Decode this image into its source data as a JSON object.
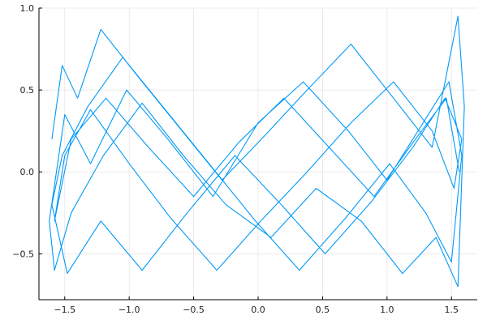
{
  "chart_data": {
    "type": "line",
    "title": "",
    "xlabel": "",
    "ylabel": "",
    "xlim": [
      -1.7,
      1.7
    ],
    "ylim": [
      -0.78,
      1.0
    ],
    "xticks": [
      -1.5,
      -1.0,
      -0.5,
      0.0,
      0.5,
      1.0,
      1.5
    ],
    "xtick_labels": [
      "−1.5",
      "−1.0",
      "−0.5",
      "0.0",
      "0.5",
      "1.0",
      "1.5"
    ],
    "yticks": [
      -0.5,
      0.0,
      0.5,
      1.0
    ],
    "ytick_labels": [
      "−0.5",
      "0.0",
      "0.5",
      "1.0"
    ],
    "grid": true,
    "legend": "none",
    "series": [
      {
        "color": "#009af9",
        "x": [
          -1.6,
          -1.52,
          -1.4,
          -1.22,
          -0.95,
          -0.62,
          -0.28,
          0.05,
          0.38,
          0.72,
          1.05,
          1.35,
          1.55,
          1.6,
          1.55,
          1.38,
          1.12,
          0.8,
          0.45,
          0.1,
          -0.25,
          -0.58,
          -0.9,
          -1.2,
          -1.45,
          -1.58,
          -1.62,
          -1.5,
          -1.3,
          -1.02,
          -0.7,
          -0.35,
          0.0,
          0.35,
          0.7,
          1.0,
          1.28,
          1.48,
          1.58,
          1.5,
          1.3,
          1.02,
          0.68,
          0.32,
          -0.02,
          -0.38,
          -0.72,
          -1.05,
          -1.32,
          -1.52,
          -1.6,
          -1.48,
          -1.22,
          -0.9,
          -0.55,
          -0.18,
          0.18,
          0.52,
          0.88,
          1.2,
          1.45,
          1.58,
          1.52,
          1.35,
          1.05,
          0.72,
          0.38,
          0.02,
          -0.32,
          -0.68,
          -1.0,
          -1.3,
          -1.5,
          -1.58,
          -1.45,
          -1.18,
          -0.85,
          -0.5,
          -0.15,
          0.2,
          0.55,
          0.9,
          1.22,
          1.46,
          1.56
        ],
        "y": [
          0.2,
          0.65,
          0.45,
          0.87,
          0.6,
          0.28,
          -0.05,
          0.22,
          0.5,
          0.78,
          0.45,
          0.15,
          0.95,
          0.4,
          -0.7,
          -0.4,
          -0.62,
          -0.3,
          -0.1,
          -0.4,
          -0.2,
          0.1,
          0.42,
          0.1,
          -0.25,
          -0.6,
          -0.3,
          0.35,
          0.05,
          0.5,
          0.2,
          -0.15,
          0.3,
          0.55,
          0.25,
          -0.05,
          0.3,
          0.55,
          0.1,
          -0.55,
          -0.25,
          0.05,
          -0.28,
          -0.6,
          -0.3,
          0.05,
          0.38,
          0.7,
          0.4,
          0.1,
          -0.2,
          -0.62,
          -0.3,
          -0.6,
          -0.25,
          0.1,
          -0.2,
          -0.5,
          -0.18,
          0.15,
          0.45,
          0.2,
          -0.1,
          0.25,
          0.55,
          0.3,
          0.0,
          -0.3,
          -0.6,
          -0.28,
          0.05,
          0.38,
          0.1,
          -0.3,
          0.2,
          0.45,
          0.15,
          -0.15,
          0.18,
          0.45,
          0.15,
          -0.15,
          0.2,
          0.45,
          0.0
        ]
      }
    ]
  }
}
